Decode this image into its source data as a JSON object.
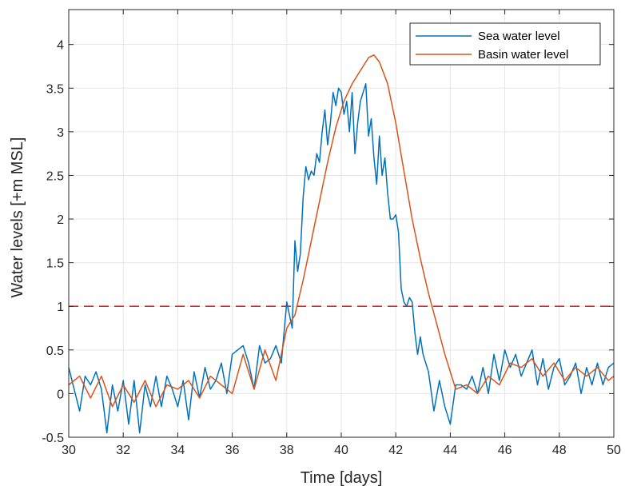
{
  "chart_data": {
    "type": "line",
    "title": "",
    "xlabel": "Time [days]",
    "ylabel": "Water levels [+m MSL]",
    "xlim": [
      30,
      50
    ],
    "ylim": [
      -0.5,
      4.4
    ],
    "xticks": [
      30,
      32,
      34,
      36,
      38,
      40,
      42,
      44,
      46,
      48,
      50
    ],
    "yticks": [
      -0.5,
      0,
      0.5,
      1,
      1.5,
      2,
      2.5,
      3,
      3.5,
      4
    ],
    "grid": true,
    "legend_position": "top-right",
    "threshold": {
      "value": 1,
      "color": "#d62728",
      "style": "dashed"
    },
    "series": [
      {
        "name": "Sea water level",
        "color": "#0072bd",
        "x": [
          30.0,
          30.2,
          30.4,
          30.6,
          30.8,
          31.0,
          31.2,
          31.4,
          31.6,
          31.8,
          32.0,
          32.2,
          32.4,
          32.6,
          32.8,
          33.0,
          33.2,
          33.4,
          33.6,
          33.8,
          34.0,
          34.2,
          34.4,
          34.6,
          34.8,
          35.0,
          35.2,
          35.4,
          35.6,
          35.8,
          36.0,
          36.2,
          36.4,
          36.6,
          36.8,
          37.0,
          37.2,
          37.4,
          37.6,
          37.8,
          38.0,
          38.1,
          38.2,
          38.3,
          38.4,
          38.5,
          38.6,
          38.7,
          38.8,
          38.9,
          39.0,
          39.1,
          39.2,
          39.3,
          39.4,
          39.5,
          39.6,
          39.7,
          39.8,
          39.9,
          40.0,
          40.1,
          40.2,
          40.3,
          40.4,
          40.5,
          40.6,
          40.7,
          40.8,
          40.9,
          41.0,
          41.1,
          41.2,
          41.3,
          41.4,
          41.5,
          41.6,
          41.7,
          41.8,
          41.9,
          42.0,
          42.1,
          42.2,
          42.3,
          42.4,
          42.5,
          42.6,
          42.7,
          42.8,
          42.9,
          43.0,
          43.2,
          43.4,
          43.6,
          43.8,
          44.0,
          44.2,
          44.4,
          44.6,
          44.8,
          45.0,
          45.2,
          45.4,
          45.6,
          45.8,
          46.0,
          46.2,
          46.4,
          46.6,
          46.8,
          47.0,
          47.2,
          47.4,
          47.6,
          47.8,
          48.0,
          48.2,
          48.4,
          48.6,
          48.8,
          49.0,
          49.2,
          49.4,
          49.6,
          49.8,
          50.0
        ],
        "y": [
          0.3,
          0.05,
          -0.2,
          0.2,
          0.1,
          0.25,
          0.05,
          -0.45,
          0.1,
          -0.2,
          0.15,
          -0.35,
          0.15,
          -0.45,
          0.1,
          -0.15,
          0.2,
          -0.15,
          0.2,
          0.05,
          -0.15,
          0.15,
          -0.3,
          0.25,
          -0.05,
          0.3,
          0.05,
          0.15,
          0.35,
          0.0,
          0.45,
          0.5,
          0.55,
          0.35,
          0.05,
          0.55,
          0.35,
          0.4,
          0.55,
          0.35,
          1.05,
          0.9,
          0.75,
          1.75,
          1.4,
          1.6,
          2.25,
          2.6,
          2.45,
          2.55,
          2.5,
          2.75,
          2.65,
          3.0,
          3.25,
          2.85,
          3.1,
          3.45,
          3.3,
          3.5,
          3.45,
          3.2,
          3.35,
          3.0,
          3.45,
          2.75,
          3.1,
          3.35,
          3.45,
          3.55,
          2.95,
          3.15,
          2.7,
          2.4,
          2.95,
          2.5,
          2.7,
          2.3,
          2.0,
          2.0,
          2.05,
          1.85,
          1.2,
          1.05,
          1.0,
          1.1,
          1.05,
          0.7,
          0.45,
          0.65,
          0.45,
          0.25,
          -0.2,
          0.15,
          -0.15,
          -0.35,
          0.1,
          0.1,
          0.05,
          0.2,
          0.0,
          0.3,
          0.0,
          0.45,
          0.15,
          0.5,
          0.3,
          0.45,
          0.2,
          0.35,
          0.5,
          0.1,
          0.4,
          0.05,
          0.3,
          0.4,
          0.1,
          0.2,
          0.35,
          0.0,
          0.3,
          0.1,
          0.35,
          0.1,
          0.3,
          0.35
        ]
      },
      {
        "name": "Basin water level",
        "color": "#d95319",
        "x": [
          30.0,
          30.4,
          30.8,
          31.2,
          31.6,
          32.0,
          32.4,
          32.8,
          33.2,
          33.6,
          34.0,
          34.4,
          34.8,
          35.2,
          35.6,
          36.0,
          36.4,
          36.8,
          37.2,
          37.6,
          38.0,
          38.3,
          38.6,
          38.9,
          39.2,
          39.5,
          39.8,
          40.1,
          40.4,
          40.7,
          41.0,
          41.2,
          41.4,
          41.7,
          42.0,
          42.3,
          42.6,
          42.9,
          43.2,
          43.5,
          43.8,
          44.0,
          44.2,
          44.6,
          45.0,
          45.4,
          45.8,
          46.2,
          46.6,
          47.0,
          47.4,
          47.8,
          48.2,
          48.6,
          49.0,
          49.4,
          49.8,
          50.0
        ],
        "y": [
          0.1,
          0.2,
          -0.05,
          0.2,
          -0.15,
          0.1,
          -0.1,
          0.15,
          -0.15,
          0.1,
          0.05,
          0.15,
          -0.05,
          0.2,
          0.1,
          0.0,
          0.45,
          0.05,
          0.5,
          0.15,
          0.75,
          0.9,
          1.3,
          1.75,
          2.2,
          2.65,
          3.05,
          3.35,
          3.55,
          3.7,
          3.85,
          3.88,
          3.8,
          3.55,
          3.1,
          2.55,
          2.0,
          1.55,
          1.15,
          0.8,
          0.45,
          0.25,
          0.05,
          0.1,
          0.0,
          0.2,
          0.1,
          0.35,
          0.3,
          0.4,
          0.2,
          0.35,
          0.15,
          0.3,
          0.2,
          0.3,
          0.15,
          0.2
        ]
      }
    ]
  }
}
